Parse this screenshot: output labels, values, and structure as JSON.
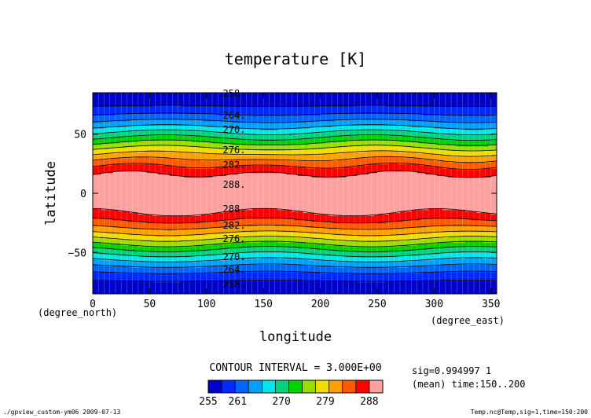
{
  "chart_data": {
    "type": "contour",
    "title": "temperature [K]",
    "xlabel": "longitude",
    "ylabel": "latitude",
    "x_units": "(degree_east)",
    "y_units": "(degree_north)",
    "xlim": [
      0,
      355
    ],
    "ylim": [
      -85,
      85
    ],
    "x_ticks": [
      "0",
      "50",
      "100",
      "150",
      "200",
      "250",
      "300",
      "350"
    ],
    "y_ticks": [
      "50",
      "0",
      "-50"
    ],
    "contour_interval_text": "CONTOUR INTERVAL = 3.000E+00",
    "info_lines": [
      "sig=0.994997 1",
      "(mean) time:150..200"
    ],
    "contour_labels": [
      "258.",
      "264.",
      "270.",
      "276.",
      "282.",
      "288.",
      "288.",
      "282.",
      "276.",
      "270.",
      "264.",
      "258."
    ],
    "colorbar_ticks": [
      "255",
      "261",
      "270",
      "279",
      "288"
    ],
    "levels": [
      255,
      258,
      261,
      264,
      267,
      270,
      273,
      276,
      279,
      282,
      285,
      288
    ],
    "colors": [
      "#0000c8",
      "#0028ff",
      "#0064ff",
      "#00a0ff",
      "#00e6e6",
      "#00d27d",
      "#00d200",
      "#9bdc00",
      "#f0dc00",
      "#ffa000",
      "#ff5a00",
      "#ff0000",
      "#ffa0a0"
    ]
  },
  "footer": {
    "left": "./gpview_custom-ym06  2009-07-13",
    "right": "Temp.nc@Temp,sig=1,time=150:200"
  }
}
